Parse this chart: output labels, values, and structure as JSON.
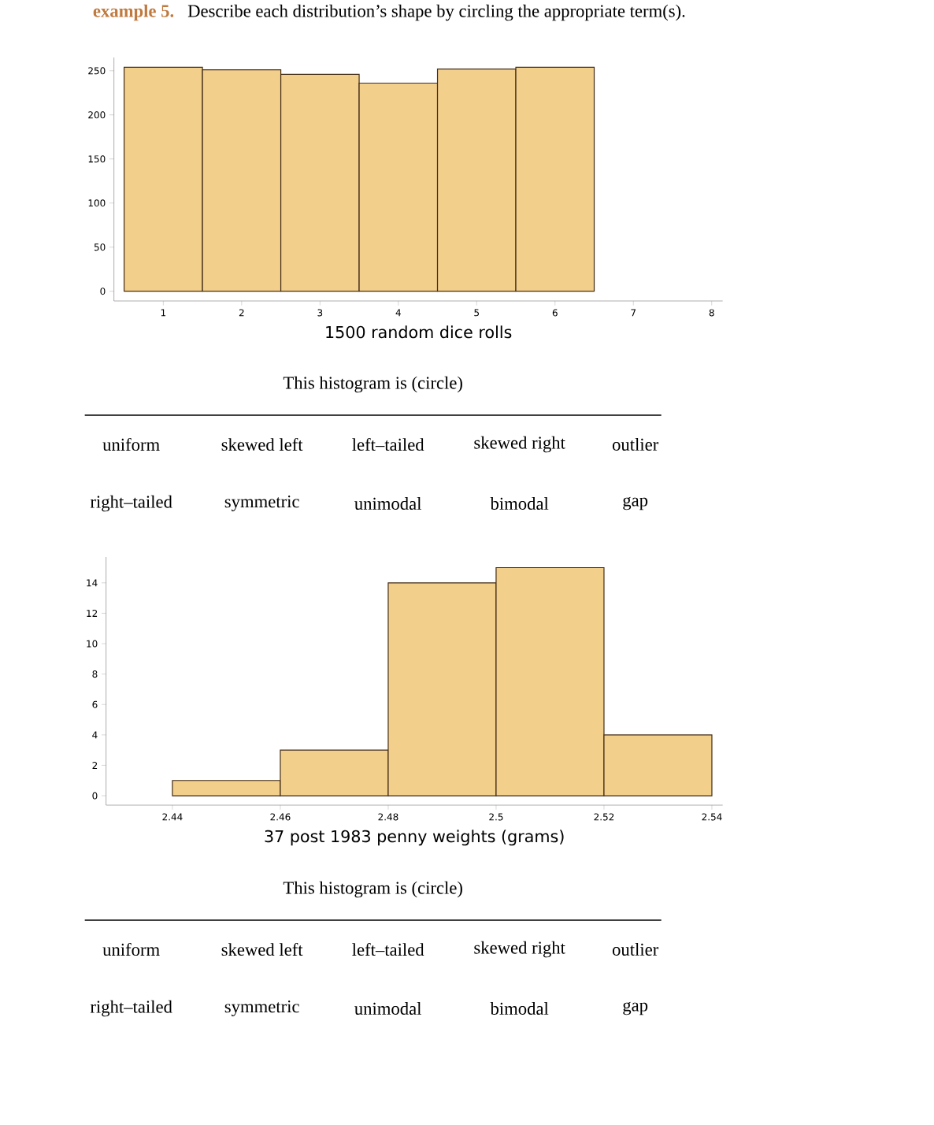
{
  "chart_data": [
    {
      "type": "histogram",
      "title": "example 5.",
      "subtitle": "Describe each distribution’s shape by circling the appropriate term(s).",
      "xlabel": "1500 random dice rolls",
      "color": "#f3cf8c",
      "bins": [
        0.5,
        1.5,
        2.5,
        3.5,
        4.5,
        5.5,
        6.5
      ],
      "values": [
        254,
        251,
        246,
        236,
        252,
        254
      ],
      "xlim": [
        0.37,
        8.14
      ],
      "ylim": [
        -11,
        265
      ],
      "xticks": [
        1,
        2,
        3,
        4,
        5,
        6,
        7,
        8
      ],
      "yticks": [
        0,
        50,
        100,
        150,
        200,
        250
      ],
      "annotations": [
        "This histogram is (circle)",
        "uniform",
        "skewed left",
        "left–tailed",
        "skewed right",
        "outlier",
        "right–tailed",
        "symmetric",
        "unimodal",
        "bimodal",
        "gap"
      ]
    },
    {
      "type": "histogram",
      "xlabel": "37 post 1983 penny weights (grams)",
      "color": "#f3cf8c",
      "bins": [
        2.44,
        2.46,
        2.48,
        2.5,
        2.52,
        2.54
      ],
      "values": [
        1,
        3,
        14,
        15,
        4
      ],
      "xlim": [
        2.4277,
        2.542
      ],
      "ylim": [
        -0.62,
        15.7
      ],
      "xticks": [
        2.44,
        2.46,
        2.48,
        2.5,
        2.52,
        2.54
      ],
      "yticks": [
        0,
        2,
        4,
        6,
        8,
        10,
        12,
        14
      ],
      "annotations": [
        "This histogram is (circle)",
        "uniform",
        "skewed left",
        "left–tailed",
        "skewed right",
        "outlier",
        "right–tailed",
        "symmetric",
        "unimodal",
        "bimodal",
        "gap"
      ]
    }
  ]
}
